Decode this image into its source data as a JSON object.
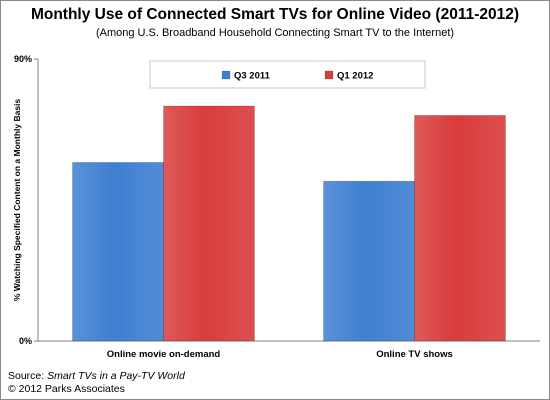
{
  "header": {
    "title": "Monthly Use of Connected Smart TVs for Online Video (2011-2012)",
    "subtitle": "(Among U.S. Broadband Household Connecting Smart TV to the Internet)"
  },
  "footer": {
    "source_prefix": "Source: ",
    "source_title": "Smart TVs in a Pay-TV World",
    "copyright": "© 2012 Parks Associates"
  },
  "colors": {
    "q3_2011": "#3f7fd1",
    "q1_2012": "#d93c3c"
  },
  "chart_data": {
    "type": "bar",
    "title": "Monthly Use of Connected Smart TVs for Online Video (2011-2012)",
    "xlabel": "",
    "ylabel": "% Watching Specified Content on a Monthly Basis",
    "ylim": [
      0,
      90
    ],
    "ytick_labels": [
      "0%",
      "90%"
    ],
    "grid": false,
    "legend": "top",
    "categories": [
      "Online movie on-demand",
      "Online TV shows"
    ],
    "series": [
      {
        "name": "Q3 2011",
        "values": [
          57,
          51
        ]
      },
      {
        "name": "Q1 2012",
        "values": [
          75,
          72
        ]
      }
    ]
  }
}
